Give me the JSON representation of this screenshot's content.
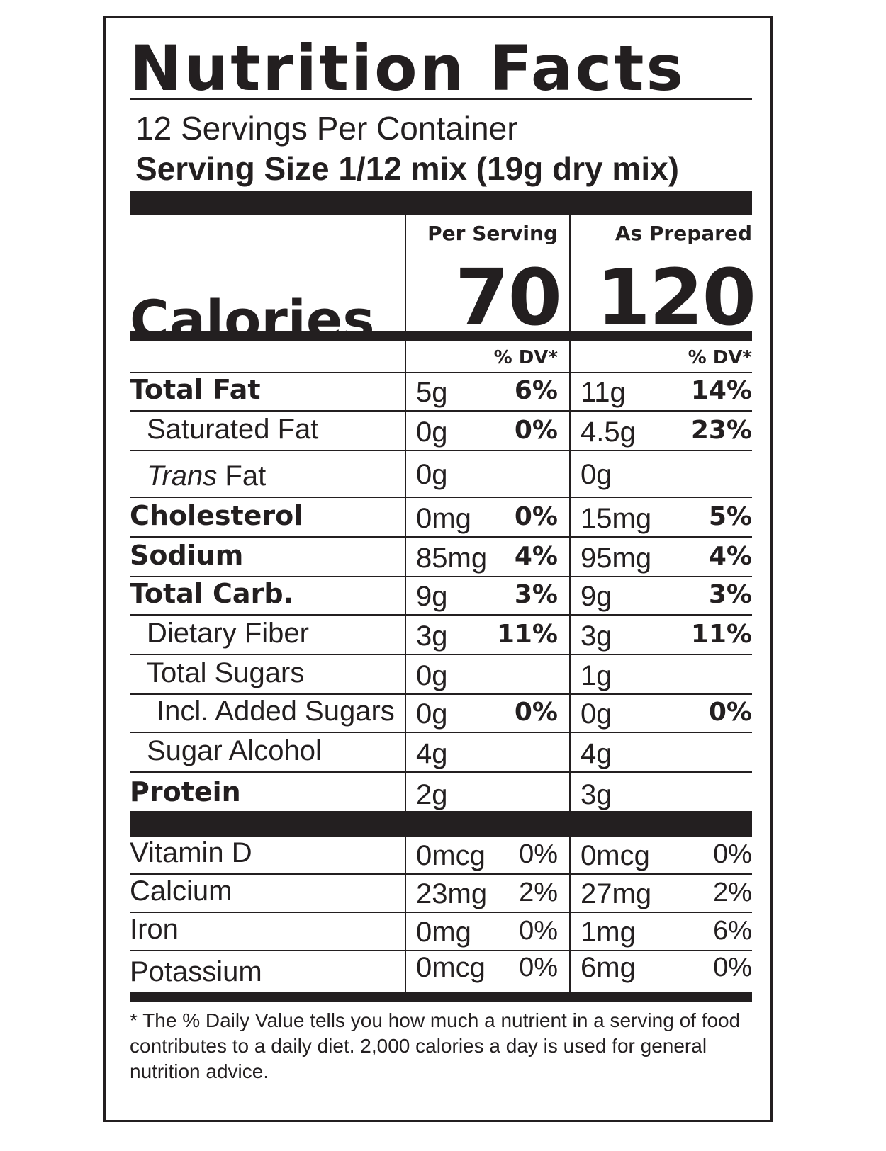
{
  "title": "Nutrition Facts",
  "servings_per_container": "12 Servings Per Container",
  "serving_size": "Serving Size 1/12 mix (19g dry mix)",
  "columns": {
    "per_serving": "Per Serving",
    "as_prepared": "As Prepared"
  },
  "calories": {
    "label": "Calories",
    "per_serving": "70",
    "as_prepared": "120"
  },
  "dv_header": "% DV*",
  "nutrients": [
    {
      "name": "Total Fat",
      "style": "bold",
      "ps_amount": "5g",
      "ps_dv": "6%",
      "ap_amount": "11g",
      "ap_dv": "14%"
    },
    {
      "name": "Saturated Fat",
      "style": "indent",
      "ps_amount": "0g",
      "ps_dv": "0%",
      "ap_amount": "4.5g",
      "ap_dv": "23%"
    },
    {
      "name_italic": "Trans",
      "name": " Fat",
      "style": "indent",
      "ps_amount": "0g",
      "ps_dv": "",
      "ap_amount": "0g",
      "ap_dv": ""
    },
    {
      "name": "Cholesterol",
      "style": "bold",
      "ps_amount": "0mg",
      "ps_dv": "0%",
      "ap_amount": "15mg",
      "ap_dv": "5%"
    },
    {
      "name": "Sodium",
      "style": "bold",
      "ps_amount": "85mg",
      "ps_dv": "4%",
      "ap_amount": "95mg",
      "ap_dv": "4%"
    },
    {
      "name": "Total Carb.",
      "style": "bold",
      "ps_amount": "9g",
      "ps_dv": "3%",
      "ap_amount": "9g",
      "ap_dv": "3%"
    },
    {
      "name": "Dietary Fiber",
      "style": "indent",
      "ps_amount": "3g",
      "ps_dv": "11%",
      "ap_amount": "3g",
      "ap_dv": "11%"
    },
    {
      "name": "Total Sugars",
      "style": "indent",
      "ps_amount": "0g",
      "ps_dv": "",
      "ap_amount": "1g",
      "ap_dv": ""
    },
    {
      "name": "Incl. Added Sugars",
      "style": "indent2",
      "ps_amount": "0g",
      "ps_dv": "0%",
      "ap_amount": "0g",
      "ap_dv": "0%"
    },
    {
      "name": "Sugar Alcohol",
      "style": "indent",
      "ps_amount": "4g",
      "ps_dv": "",
      "ap_amount": "4g",
      "ap_dv": ""
    },
    {
      "name": "Protein",
      "style": "bold",
      "ps_amount": "2g",
      "ps_dv": "",
      "ap_amount": "3g",
      "ap_dv": ""
    }
  ],
  "vitamins": [
    {
      "name": "Vitamin D",
      "ps_amount": "0mcg",
      "ps_dv": "0%",
      "ap_amount": "0mcg",
      "ap_dv": "0%"
    },
    {
      "name": "Calcium",
      "ps_amount": "23mg",
      "ps_dv": "2%",
      "ap_amount": "27mg",
      "ap_dv": "2%"
    },
    {
      "name": "Iron",
      "ps_amount": "0mg",
      "ps_dv": "0%",
      "ap_amount": "1mg",
      "ap_dv": "6%"
    },
    {
      "name": "Potassium",
      "ps_amount": "0mcg",
      "ps_dv": "0%",
      "ap_amount": "6mg",
      "ap_dv": "0%"
    }
  ],
  "footnote": "* The % Daily Value tells you how much a nutrient in a serving of food contributes to a daily diet. 2,000 calories a day is used for general nutrition advice."
}
